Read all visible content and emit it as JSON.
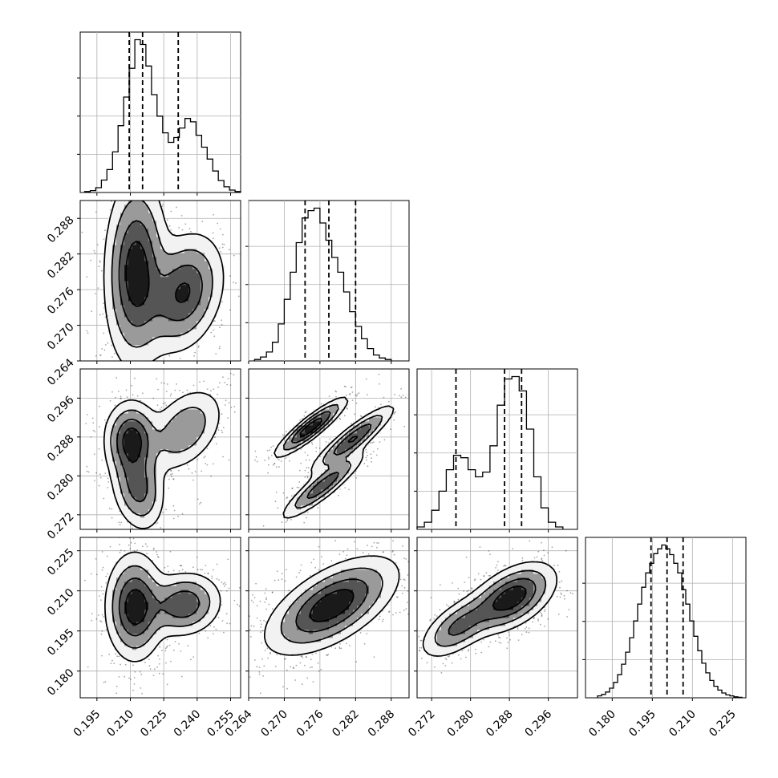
{
  "chart_data": {
    "type": "corner",
    "n_params": 4,
    "grid": true,
    "quantiles": [
      0.16,
      0.5,
      0.84
    ],
    "parameters": [
      {
        "index": 0,
        "range": [
          0.1875,
          0.2595
        ],
        "ticks": [
          0.195,
          0.21,
          0.225,
          0.24,
          0.255
        ],
        "tick_labels": [
          "0.195",
          "0.210",
          "0.225",
          "0.240",
          "0.255"
        ]
      },
      {
        "index": 1,
        "range": [
          0.264,
          0.291
        ],
        "ticks": [
          0.264,
          0.27,
          0.276,
          0.282,
          0.288
        ],
        "tick_labels": [
          "0.264",
          "0.270",
          "0.276",
          "0.282",
          "0.288"
        ]
      },
      {
        "index": 2,
        "range": [
          0.269,
          0.302
        ],
        "ticks": [
          0.272,
          0.28,
          0.288,
          0.296
        ],
        "tick_labels": [
          "0.272",
          "0.280",
          "0.288",
          "0.296"
        ]
      },
      {
        "index": 3,
        "range": [
          0.17,
          0.23
        ],
        "ticks": [
          0.18,
          0.195,
          0.21,
          0.225
        ],
        "tick_labels": [
          "0.180",
          "0.195",
          "0.210",
          "0.225"
        ]
      }
    ],
    "marginal_quantiles": [
      [
        0.2095,
        0.2155,
        0.2315
      ],
      [
        0.2735,
        0.2775,
        0.282
      ],
      [
        0.277,
        0.287,
        0.2905
      ],
      [
        0.1945,
        0.2005,
        0.2065
      ]
    ],
    "histograms": [
      {
        "param": 0,
        "bin_edges": [
          0.1895,
          0.192,
          0.1945,
          0.197,
          0.1995,
          0.202,
          0.2045,
          0.207,
          0.2095,
          0.212,
          0.2145,
          0.217,
          0.2195,
          0.222,
          0.2245,
          0.227,
          0.2295,
          0.232,
          0.2345,
          0.237,
          0.2395,
          0.242,
          0.2445,
          0.247,
          0.2495,
          0.252,
          0.2545,
          0.257,
          0.2595
        ],
        "counts": [
          2,
          4,
          10,
          26,
          48,
          85,
          140,
          200,
          260,
          320,
          310,
          265,
          205,
          160,
          125,
          105,
          115,
          135,
          155,
          148,
          120,
          95,
          70,
          45,
          25,
          12,
          5,
          2
        ]
      },
      {
        "param": 1,
        "bin_edges": [
          0.265,
          0.266,
          0.267,
          0.268,
          0.269,
          0.27,
          0.271,
          0.272,
          0.273,
          0.274,
          0.275,
          0.276,
          0.277,
          0.278,
          0.279,
          0.28,
          0.281,
          0.282,
          0.283,
          0.284,
          0.285,
          0.286,
          0.287,
          0.288
        ],
        "counts": [
          3,
          8,
          18,
          38,
          75,
          125,
          180,
          240,
          290,
          305,
          310,
          280,
          245,
          210,
          180,
          140,
          100,
          70,
          45,
          25,
          12,
          6,
          3
        ]
      },
      {
        "param": 2,
        "bin_edges": [
          0.269,
          0.2705,
          0.272,
          0.2735,
          0.275,
          0.2765,
          0.278,
          0.2795,
          0.281,
          0.2825,
          0.284,
          0.2855,
          0.287,
          0.2885,
          0.29,
          0.2915,
          0.293,
          0.2945,
          0.296,
          0.2975,
          0.299
        ],
        "counts": [
          5,
          15,
          40,
          80,
          125,
          155,
          150,
          125,
          110,
          120,
          175,
          260,
          315,
          320,
          290,
          210,
          110,
          45,
          15,
          5
        ]
      },
      {
        "param": 3,
        "bin_edges": [
          0.1745,
          0.176,
          0.1775,
          0.179,
          0.1805,
          0.182,
          0.1835,
          0.185,
          0.1865,
          0.188,
          0.1895,
          0.191,
          0.1925,
          0.194,
          0.1955,
          0.197,
          0.1985,
          0.2,
          0.2015,
          0.203,
          0.2045,
          0.206,
          0.2075,
          0.209,
          0.2105,
          0.212,
          0.2135,
          0.215,
          0.2165,
          0.218,
          0.2195,
          0.221,
          0.2225,
          0.224,
          0.2255,
          0.227,
          0.2285
        ],
        "counts": [
          4,
          7,
          12,
          20,
          32,
          48,
          70,
          95,
          125,
          160,
          195,
          230,
          260,
          280,
          300,
          310,
          318,
          310,
          298,
          280,
          260,
          225,
          195,
          160,
          128,
          98,
          72,
          52,
          36,
          24,
          16,
          10,
          6,
          4,
          2,
          1
        ]
      }
    ],
    "pairs": [
      {
        "x_param": 0,
        "y_param": 1,
        "modes": [
          {
            "cx": 0.2125,
            "cy": 0.279,
            "sx": 0.007,
            "sy": 0.008,
            "rho": 0.05,
            "w": 0.6
          },
          {
            "cx": 0.234,
            "cy": 0.2755,
            "sx": 0.009,
            "sy": 0.005,
            "rho": 0.25,
            "w": 0.4
          }
        ]
      },
      {
        "x_param": 0,
        "y_param": 2,
        "modes": [
          {
            "cx": 0.2105,
            "cy": 0.2875,
            "sx": 0.006,
            "sy": 0.004,
            "rho": 0.0,
            "w": 0.38
          },
          {
            "cx": 0.2135,
            "cy": 0.2775,
            "sx": 0.006,
            "sy": 0.0045,
            "rho": -0.2,
            "w": 0.3
          },
          {
            "cx": 0.2345,
            "cy": 0.2895,
            "sx": 0.009,
            "sy": 0.0045,
            "rho": 0.4,
            "w": 0.32
          }
        ]
      },
      {
        "x_param": 0,
        "y_param": 3,
        "modes": [
          {
            "cx": 0.212,
            "cy": 0.204,
            "sx": 0.0065,
            "sy": 0.01,
            "rho": 0.0,
            "w": 0.62
          },
          {
            "cx": 0.234,
            "cy": 0.205,
            "sx": 0.0085,
            "sy": 0.006,
            "rho": 0.1,
            "w": 0.38
          }
        ]
      },
      {
        "x_param": 1,
        "y_param": 2,
        "modes": [
          {
            "cx": 0.2745,
            "cy": 0.29,
            "sx": 0.003,
            "sy": 0.003,
            "rho": 0.9,
            "w": 0.32
          },
          {
            "cx": 0.2815,
            "cy": 0.2875,
            "sx": 0.0035,
            "sy": 0.0035,
            "rho": 0.9,
            "w": 0.36
          },
          {
            "cx": 0.2765,
            "cy": 0.278,
            "sx": 0.0035,
            "sy": 0.0035,
            "rho": 0.9,
            "w": 0.32
          }
        ]
      },
      {
        "x_param": 1,
        "y_param": 3,
        "modes": [
          {
            "cx": 0.278,
            "cy": 0.2045,
            "sx": 0.0055,
            "sy": 0.009,
            "rho": 0.6,
            "w": 1.0
          }
        ]
      },
      {
        "x_param": 2,
        "y_param": 3,
        "modes": [
          {
            "cx": 0.2775,
            "cy": 0.1965,
            "sx": 0.004,
            "sy": 0.006,
            "rho": 0.6,
            "w": 0.32
          },
          {
            "cx": 0.2885,
            "cy": 0.2075,
            "sx": 0.0045,
            "sy": 0.0065,
            "rho": 0.5,
            "w": 0.68
          }
        ]
      }
    ]
  }
}
